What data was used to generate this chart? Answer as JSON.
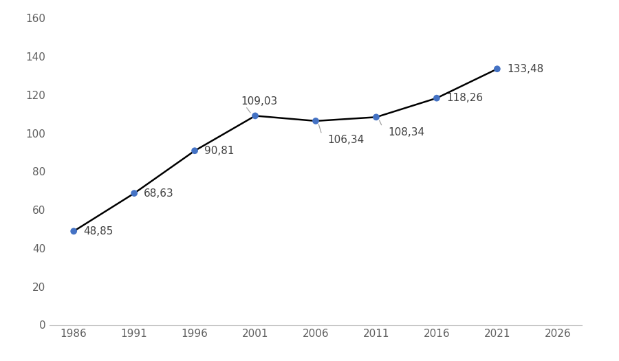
{
  "years": [
    1986,
    1991,
    1996,
    2001,
    2006,
    2011,
    2016,
    2021
  ],
  "values": [
    48.85,
    68.63,
    90.81,
    109.03,
    106.34,
    108.34,
    118.26,
    133.48
  ],
  "labels": [
    "48,85",
    "68,63",
    "90,81",
    "109,03",
    "106,34",
    "108,34",
    "118,26",
    "133,48"
  ],
  "line_color": "#000000",
  "marker_color": "#4472C4",
  "marker_size": 7,
  "xlim": [
    1984,
    2028
  ],
  "ylim": [
    0,
    160
  ],
  "xticks": [
    1986,
    1991,
    1996,
    2001,
    2006,
    2011,
    2016,
    2021,
    2026
  ],
  "yticks": [
    0,
    20,
    40,
    60,
    80,
    100,
    120,
    140,
    160
  ],
  "background_color": "#ffffff",
  "tick_label_fontsize": 11,
  "data_label_fontsize": 11,
  "label_color": "#404040",
  "spine_color": "#c0c0c0",
  "leader_line_color": "#a0a0a0"
}
